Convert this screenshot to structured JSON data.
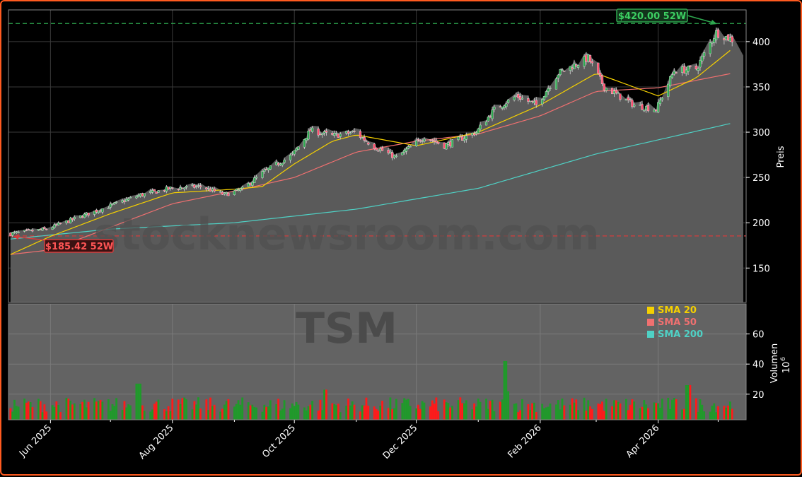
{
  "chart_data": {
    "type": "candlestick",
    "ticker_watermark": "TSM",
    "site_watermark": "stocknewsroom.com",
    "ylabel_price": "Preis",
    "ylabel_volume": "Volumen",
    "volume_unit_exponent": "6",
    "price_ylim": [
      112,
      435
    ],
    "volume_ylim": [
      3,
      80
    ],
    "price_ticks": [
      150,
      200,
      250,
      300,
      350,
      400
    ],
    "volume_ticks": [
      20,
      40,
      60
    ],
    "x_ticks": [
      {
        "date": "2025-06-01",
        "label": "Jun 2025"
      },
      {
        "date": "2025-08-01",
        "label": "Aug 2025"
      },
      {
        "date": "2025-10-01",
        "label": "Oct 2025"
      },
      {
        "date": "2025-12-01",
        "label": "Dec 2025"
      },
      {
        "date": "2026-02-01",
        "label": "Feb 2026"
      },
      {
        "date": "2026-04-01",
        "label": "Apr 2026"
      }
    ],
    "x_range": [
      "2025-05-11",
      "2026-05-15"
    ],
    "last_date": "2026-05-08",
    "high_52w": {
      "value": 420.0,
      "label": "$420.00 52W",
      "color": "#2ea84f"
    },
    "low_52w": {
      "value": 185.42,
      "label": "$185.42 52W",
      "color": "#d43c3c"
    },
    "grid": true,
    "legend_position": "top-right of volume panel",
    "legend": [
      {
        "name": "SMA 20",
        "color": "#f5d000"
      },
      {
        "name": "SMA 50",
        "color": "#f07070"
      },
      {
        "name": "SMA 200",
        "color": "#4fd1c5"
      }
    ],
    "colors": {
      "up": "#1f9a2a",
      "down": "#ff1a1a",
      "area": "#5a5a5a",
      "panel": "#636363"
    },
    "close_anchors": [
      {
        "date": "2025-05-12",
        "close": 188
      },
      {
        "date": "2025-05-30",
        "close": 193
      },
      {
        "date": "2025-06-15",
        "close": 206
      },
      {
        "date": "2025-06-30",
        "close": 218
      },
      {
        "date": "2025-07-15",
        "close": 230
      },
      {
        "date": "2025-07-31",
        "close": 238
      },
      {
        "date": "2025-08-15",
        "close": 240
      },
      {
        "date": "2025-08-27",
        "close": 231
      },
      {
        "date": "2025-09-05",
        "close": 237
      },
      {
        "date": "2025-09-15",
        "close": 255
      },
      {
        "date": "2025-09-30",
        "close": 275
      },
      {
        "date": "2025-10-09",
        "close": 302
      },
      {
        "date": "2025-10-20",
        "close": 296
      },
      {
        "date": "2025-10-31",
        "close": 300
      },
      {
        "date": "2025-11-10",
        "close": 284
      },
      {
        "date": "2025-11-21",
        "close": 272
      },
      {
        "date": "2025-12-05",
        "close": 295
      },
      {
        "date": "2025-12-15",
        "close": 285
      },
      {
        "date": "2025-12-31",
        "close": 300
      },
      {
        "date": "2026-01-09",
        "close": 325
      },
      {
        "date": "2026-01-20",
        "close": 340
      },
      {
        "date": "2026-01-30",
        "close": 330
      },
      {
        "date": "2026-02-10",
        "close": 365
      },
      {
        "date": "2026-02-25",
        "close": 382
      },
      {
        "date": "2026-03-05",
        "close": 350
      },
      {
        "date": "2026-03-20",
        "close": 330
      },
      {
        "date": "2026-03-31",
        "close": 325
      },
      {
        "date": "2026-04-09",
        "close": 368
      },
      {
        "date": "2026-04-20",
        "close": 370
      },
      {
        "date": "2026-04-30",
        "close": 410
      },
      {
        "date": "2026-05-08",
        "close": 402
      }
    ],
    "sma20_anchors": [
      {
        "date": "2025-05-12",
        "close": 165
      },
      {
        "date": "2025-06-01",
        "close": 185
      },
      {
        "date": "2025-07-01",
        "close": 210
      },
      {
        "date": "2025-08-01",
        "close": 233
      },
      {
        "date": "2025-09-01",
        "close": 237
      },
      {
        "date": "2025-09-15",
        "close": 240
      },
      {
        "date": "2025-10-01",
        "close": 265
      },
      {
        "date": "2025-10-20",
        "close": 290
      },
      {
        "date": "2025-11-01",
        "close": 297
      },
      {
        "date": "2025-12-01",
        "close": 285
      },
      {
        "date": "2026-01-01",
        "close": 300
      },
      {
        "date": "2026-02-01",
        "close": 330
      },
      {
        "date": "2026-03-01",
        "close": 365
      },
      {
        "date": "2026-04-01",
        "close": 340
      },
      {
        "date": "2026-04-20",
        "close": 360
      },
      {
        "date": "2026-05-08",
        "close": 392
      }
    ],
    "sma50_anchors": [
      {
        "date": "2025-05-12",
        "close": 165
      },
      {
        "date": "2025-06-01",
        "close": 170
      },
      {
        "date": "2025-07-01",
        "close": 195
      },
      {
        "date": "2025-08-01",
        "close": 221
      },
      {
        "date": "2025-09-01",
        "close": 235
      },
      {
        "date": "2025-10-01",
        "close": 250
      },
      {
        "date": "2025-11-01",
        "close": 278
      },
      {
        "date": "2025-12-01",
        "close": 290
      },
      {
        "date": "2026-01-01",
        "close": 298
      },
      {
        "date": "2026-02-01",
        "close": 318
      },
      {
        "date": "2026-03-01",
        "close": 345
      },
      {
        "date": "2026-04-01",
        "close": 349
      },
      {
        "date": "2026-05-08",
        "close": 365
      }
    ],
    "sma200_anchors": [
      {
        "date": "2025-05-12",
        "close": 182
      },
      {
        "date": "2025-07-01",
        "close": 193
      },
      {
        "date": "2025-09-01",
        "close": 200
      },
      {
        "date": "2025-11-01",
        "close": 215
      },
      {
        "date": "2026-01-01",
        "close": 238
      },
      {
        "date": "2026-03-01",
        "close": 276
      },
      {
        "date": "2026-05-08",
        "close": 310
      }
    ],
    "volume_spikes": [
      {
        "date": "2025-07-15",
        "volume": 27
      },
      {
        "date": "2025-10-17",
        "volume": 23
      },
      {
        "date": "2026-01-15",
        "volume": 42
      },
      {
        "date": "2026-01-17",
        "volume": 22
      },
      {
        "date": "2026-04-16",
        "volume": 26
      }
    ]
  }
}
